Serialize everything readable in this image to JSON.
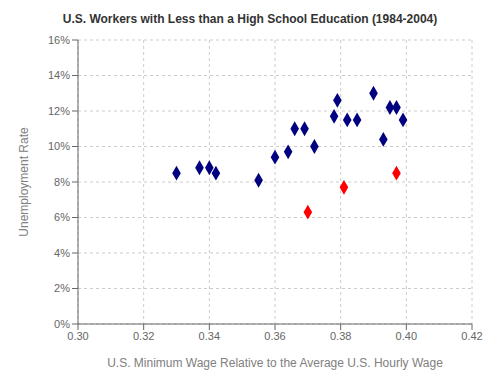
{
  "chart_data": {
    "type": "scatter",
    "title": "U.S. Workers with Less than a High School Education (1984-2004)",
    "xlabel": "U.S. Minimum Wage Relative to the Average U.S. Hourly Wage",
    "ylabel": "Unemployment Rate",
    "series": [
      {
        "color": "#000080",
        "marker": "diamond",
        "x": [
          0.33,
          0.337,
          0.34,
          0.342,
          0.355,
          0.36,
          0.364,
          0.366,
          0.369,
          0.372,
          0.378,
          0.379,
          0.382,
          0.385,
          0.39,
          0.393,
          0.395,
          0.397,
          0.399
        ],
        "values": [
          0.085,
          0.088,
          0.088,
          0.085,
          0.081,
          0.094,
          0.097,
          0.11,
          0.11,
          0.1,
          0.117,
          0.126,
          0.115,
          0.115,
          0.13,
          0.104,
          0.122,
          0.122,
          0.115
        ]
      },
      {
        "color": "#ff0000",
        "marker": "diamond",
        "x": [
          0.37,
          0.381,
          0.397
        ],
        "values": [
          0.063,
          0.077,
          0.085
        ]
      }
    ],
    "xlim": [
      0.3,
      0.42
    ],
    "ylim": [
      0.0,
      0.16
    ],
    "xticks": [
      {
        "value": 0.3,
        "label": "0.30"
      },
      0.32,
      0.34,
      0.36,
      0.38,
      {
        "value": 0.4,
        "label": "0.40"
      },
      0.42
    ],
    "yticks": [
      {
        "value": 0.0,
        "label": "0%"
      },
      {
        "value": 0.02,
        "label": "2%"
      },
      {
        "value": 0.04,
        "label": "4%"
      },
      {
        "value": 0.06,
        "label": "6%"
      },
      {
        "value": 0.08,
        "label": "8%"
      },
      {
        "value": 0.1,
        "label": "10%"
      },
      {
        "value": 0.12,
        "label": "12%"
      },
      {
        "value": 0.14,
        "label": "14%"
      },
      {
        "value": 0.16,
        "label": "16%"
      }
    ],
    "grid": true
  }
}
